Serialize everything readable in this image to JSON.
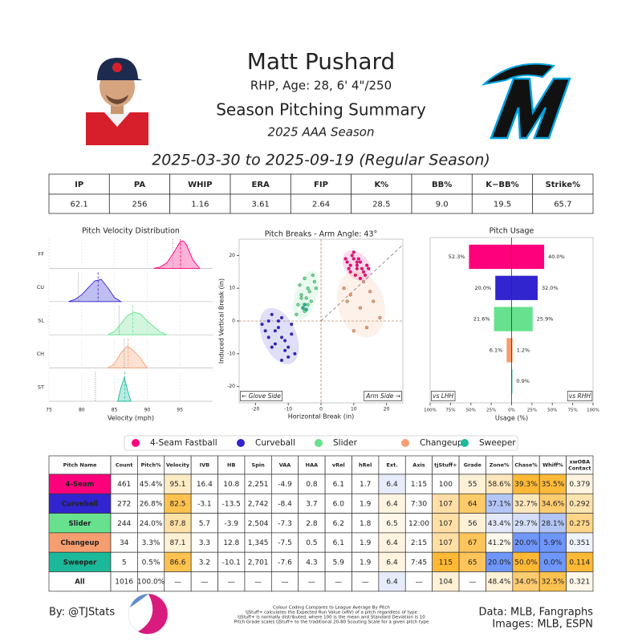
{
  "header": {
    "title": "Matt Pushard",
    "subtitle": "RHP, Age: 28, 6' 4\"/250",
    "report": "Season Pitching Summary",
    "season": "2025 AAA Season",
    "dates": "2025-03-30 to 2025-09-19 (Regular Season)"
  },
  "summary_table": {
    "headers": [
      "IP",
      "PA",
      "WHIP",
      "ERA",
      "FIP",
      "K%",
      "BB%",
      "K−BB%",
      "Strike%"
    ],
    "values": [
      "62.1",
      "256",
      "1.16",
      "3.61",
      "2.64",
      "28.5",
      "9.0",
      "19.5",
      "65.7"
    ]
  },
  "chart_data": [
    {
      "type": "density",
      "title": "Pitch Velocity Distribution",
      "xlabel": "Velocity (mph)",
      "xlim": [
        75,
        100
      ],
      "xticks": [
        75,
        80,
        85,
        90,
        95
      ],
      "series": [
        {
          "name": "FF",
          "color": "#FF007D",
          "x": [
            91,
            92,
            93,
            94,
            95,
            95.5,
            96,
            97,
            98
          ],
          "values": [
            0,
            0.05,
            0.2,
            0.55,
            0.95,
            1,
            0.85,
            0.3,
            0
          ],
          "mean": 95.1,
          "league_mean": 93.9
        },
        {
          "name": "CU",
          "color": "#3025CE",
          "x": [
            78,
            79,
            80,
            81,
            82,
            83,
            84,
            85,
            86
          ],
          "values": [
            0,
            0.08,
            0.25,
            0.5,
            0.75,
            0.8,
            0.5,
            0.15,
            0
          ],
          "mean": 82.5,
          "league_mean": 79.5
        },
        {
          "name": "SL",
          "color": "#67E18D",
          "x": [
            84,
            85,
            86,
            87,
            88,
            89,
            90,
            91,
            92,
            93
          ],
          "values": [
            0,
            0.12,
            0.4,
            0.7,
            0.82,
            0.75,
            0.5,
            0.3,
            0.1,
            0
          ],
          "mean": 87.8,
          "league_mean": 85.7
        },
        {
          "name": "CH",
          "color": "#F79E70",
          "x": [
            84,
            85,
            86,
            87,
            88,
            89,
            90
          ],
          "values": [
            0,
            0.15,
            0.55,
            0.8,
            0.6,
            0.35,
            0
          ],
          "mean": 87.1,
          "league_mean": 86.5
        },
        {
          "name": "ST",
          "color": "#1BB999",
          "x": [
            85.5,
            86,
            86.5,
            87,
            87.5
          ],
          "values": [
            0,
            0.5,
            0.85,
            0.4,
            0
          ],
          "mean": 86.6,
          "league_mean": 82.1
        }
      ]
    },
    {
      "type": "scatter",
      "title": "Pitch Breaks - Arm Angle: 43°",
      "xlabel": "Horizontal Break (in)",
      "ylabel": "Induced Vertical Break (in)",
      "xlim": [
        -25,
        25
      ],
      "ylim": [
        -25,
        25
      ],
      "xticks": [
        -20,
        -10,
        0,
        10,
        20
      ],
      "yticks": [
        -20,
        -10,
        0,
        10,
        20
      ],
      "annotations": [
        "← Glove Side",
        "Arm Side →"
      ],
      "series": [
        {
          "name": "FF",
          "color": "#FF007D",
          "x": [
            8,
            9,
            10,
            11,
            12,
            13,
            14,
            9.5,
            10.5,
            11.5,
            12.5,
            8.5,
            13.5,
            10,
            11,
            12,
            9,
            14.5,
            7.5,
            11
          ],
          "values": [
            18,
            17,
            19,
            16,
            18,
            15,
            17,
            20,
            14,
            19,
            16,
            16,
            14,
            21,
            17,
            13,
            15,
            16,
            19,
            18
          ]
        },
        {
          "name": "CU",
          "color": "#3025CE",
          "x": [
            -18,
            -16,
            -14,
            -12,
            -10,
            -8,
            -15,
            -13,
            -11,
            -9,
            -17,
            -12,
            -14,
            -10,
            -16,
            -11,
            -13,
            -9,
            -15,
            -12
          ],
          "values": [
            -1,
            0,
            -3,
            -5,
            -8,
            -10,
            2,
            -2,
            -6,
            -4,
            -3,
            1,
            -7,
            -11,
            -5,
            -9,
            0,
            -1,
            -8,
            -12
          ]
        },
        {
          "name": "SL",
          "color": "#67E18D",
          "x": [
            -7,
            -6,
            -5,
            -4,
            -3,
            -2,
            -6.5,
            -5.5,
            -4.5,
            -3.5,
            -7.5,
            -2.5,
            -5,
            -4,
            -6,
            -1.5
          ],
          "values": [
            5,
            8,
            3,
            10,
            6,
            12,
            11,
            4,
            7,
            9,
            2,
            14,
            13,
            5,
            7,
            10
          ]
        },
        {
          "name": "CH",
          "color": "#F79E70",
          "x": [
            7,
            9,
            12,
            14,
            16,
            18,
            10,
            13,
            8,
            15
          ],
          "values": [
            10,
            8,
            4,
            -2,
            6,
            1,
            -3,
            12,
            6,
            9
          ]
        },
        {
          "name": "ST",
          "color": "#1BB999",
          "x": [
            -5.5,
            -5,
            -4.5
          ],
          "values": [
            4,
            5,
            3.5
          ]
        }
      ]
    },
    {
      "type": "diverging_bar",
      "title": "Pitch Usage",
      "xlabel": "Usage (%)",
      "xlim": [
        -100,
        100
      ],
      "xticks": [
        {
          "value": -100,
          "label": "100%"
        },
        {
          "value": -75,
          "label": "75%"
        },
        {
          "value": -50,
          "label": "50%"
        },
        {
          "value": -25,
          "label": "25%"
        },
        {
          "value": 0,
          "label": "0%"
        },
        {
          "value": 25,
          "label": "25%"
        },
        {
          "value": 50,
          "label": "50%"
        },
        {
          "value": 75,
          "label": "75%"
        },
        {
          "value": 100,
          "label": "100%"
        }
      ],
      "colors": [
        "#FF007D",
        "#3025CE",
        "#67E18D",
        "#F79E70",
        "#1BB999"
      ],
      "series": [
        {
          "name": "vs LHH",
          "side": "left",
          "values": [
            52.3,
            20.0,
            21.6,
            6.1,
            0
          ],
          "value_labels": [
            "52.3%",
            "20.0%",
            "21.6%",
            "6.1%",
            null
          ]
        },
        {
          "name": "vs RHH",
          "side": "right",
          "values": [
            40.0,
            32.0,
            25.9,
            1.2,
            0.9
          ],
          "value_labels": [
            "40.0%",
            "32.0%",
            "25.9%",
            "1.2%",
            "0.9%"
          ]
        }
      ]
    }
  ],
  "legend": {
    "items": [
      {
        "name": "4-Seam Fastball",
        "color": "#FF007D"
      },
      {
        "name": "Curveball",
        "color": "#3025CE"
      },
      {
        "name": "Slider",
        "color": "#67E18D"
      },
      {
        "name": "Changeup",
        "color": "#F79E70"
      },
      {
        "name": "Sweeper",
        "color": "#1BB999"
      }
    ]
  },
  "pitch_table": {
    "headers": [
      "Pitch Name",
      "Count",
      "Pitch%",
      "Velocity",
      "IVB",
      "HB",
      "Spin",
      "VAA",
      "HAA",
      "vRel",
      "hRel",
      "Ext.",
      "Axis",
      "tjStuff+",
      "Grade",
      "Zone%",
      "Chase%",
      "Whiff%",
      "xwOBA Contact"
    ],
    "rows": [
      {
        "text_color": "#ffffff",
        "cells": [
          "4-Seam",
          "461",
          "45.4%",
          "95.1",
          "16.4",
          "10.8",
          "2,251",
          "-4.9",
          "0.8",
          "6.1",
          "1.7",
          "6.4",
          "1:15",
          "100",
          "55",
          "58.6%",
          "39.3%",
          "35.5%",
          "0.379"
        ],
        "colors": [
          "#FF007D",
          null,
          null,
          "#FEEBC4",
          null,
          null,
          null,
          null,
          null,
          null,
          null,
          "#E6ECF9",
          null,
          null,
          "#FFF1D6",
          "#FFE7BC",
          "#FFB935",
          "#FFBA3A",
          "#FFF4E0"
        ]
      },
      {
        "text_color": "#ffffff",
        "cells": [
          "Curveball",
          "272",
          "26.8%",
          "82.5",
          "-3.1",
          "-13.5",
          "2,742",
          "-8.4",
          "3.7",
          "6.0",
          "1.9",
          "6.4",
          "7:30",
          "107",
          "64",
          "37.1%",
          "32.7%",
          "34.6%",
          "0.292"
        ],
        "colors": [
          "#3025CE",
          null,
          null,
          "#FFC24F",
          null,
          null,
          null,
          null,
          null,
          null,
          null,
          "#FFF4E0",
          null,
          "#FFDFA6",
          "#FFCB68",
          "#B3C6F6",
          "#FFE7BC",
          "#FFCC70",
          "#FFE3B0"
        ]
      },
      {
        "text_color": "#000000",
        "cells": [
          "Slider",
          "244",
          "24.0%",
          "87.8",
          "5.7",
          "-3.9",
          "2,504",
          "-7.3",
          "2.8",
          "6.2",
          "1.8",
          "6.5",
          "12:00",
          "107",
          "56",
          "43.4%",
          "29.7%",
          "28.1%",
          "0.275"
        ],
        "colors": [
          "#67E18D",
          null,
          null,
          "#FFE0A6",
          null,
          null,
          null,
          null,
          null,
          null,
          null,
          "#FFF8EA",
          null,
          "#FFDFA6",
          "#FFF1D6",
          "#E4EAFA",
          "#D4DEF8",
          "#B2C4F5",
          "#FFD68A"
        ]
      },
      {
        "text_color": "#000000",
        "cells": [
          "Changeup",
          "34",
          "3.3%",
          "87.1",
          "3.3",
          "12.8",
          "1,345",
          "-7.5",
          "0.5",
          "6.1",
          "1.9",
          "6.4",
          "2:15",
          "107",
          "67",
          "41.2%",
          "20.0%",
          "5.9%",
          "0.351"
        ],
        "colors": [
          "#F79E70",
          null,
          null,
          "#FFF1D6",
          null,
          null,
          null,
          null,
          null,
          null,
          null,
          "#FFF4E0",
          null,
          "#FFDFA6",
          "#FFC45A",
          "#FFF8EC",
          "#6E96FB",
          "#6E96FB",
          "#EEF2FC"
        ]
      },
      {
        "text_color": "#ffffff",
        "cells": [
          "Sweeper",
          "5",
          "0.5%",
          "86.6",
          "3.2",
          "-10.1",
          "2,701",
          "-7.6",
          "4.3",
          "5.9",
          "1.9",
          "6.4",
          "7:45",
          "115",
          "65",
          "20.0%",
          "50.0%",
          "0.0%",
          "0.114"
        ],
        "colors": [
          "#1BB999",
          null,
          null,
          "#FFC24F",
          null,
          null,
          null,
          null,
          null,
          null,
          null,
          "#FFF4E0",
          null,
          "#FFB935",
          "#FFC45A",
          "#6E96FB",
          "#FFB935",
          "#6E96FB",
          "#FFB935"
        ]
      },
      {
        "text_color": "#000000",
        "cells": [
          "All",
          "1016",
          "100.0%",
          "—",
          "—",
          "—",
          "—",
          "—",
          "—",
          "—",
          "—",
          "6.4",
          "—",
          "104",
          "—",
          "48.4%",
          "34.0%",
          "32.5%",
          "0.321"
        ],
        "colors": [
          null,
          null,
          null,
          null,
          null,
          null,
          null,
          null,
          null,
          null,
          null,
          "#E6ECF9",
          null,
          "#FFF1D6",
          null,
          "#FFF1D6",
          "#FFCC70",
          "#FFC24F",
          "#FFF8EA"
        ]
      }
    ]
  },
  "footer": {
    "credit": "By: @TJStats",
    "notes": [
      "Colour Coding Compares to League Average By Pitch",
      "tjStuff+ calculates the Expected Run Value (xRV) of a pitch regardless of type",
      "tjStuff+ is normally distributed, where 100 is the mean and Standard Deviation is 10",
      "Pitch Grade scales tjStuff+ to the traditional 20-80 Scouting Scale for a given pitch type"
    ],
    "data_source": "Data: MLB, Fangraphs",
    "image_source": "Images: MLB, ESPN"
  }
}
